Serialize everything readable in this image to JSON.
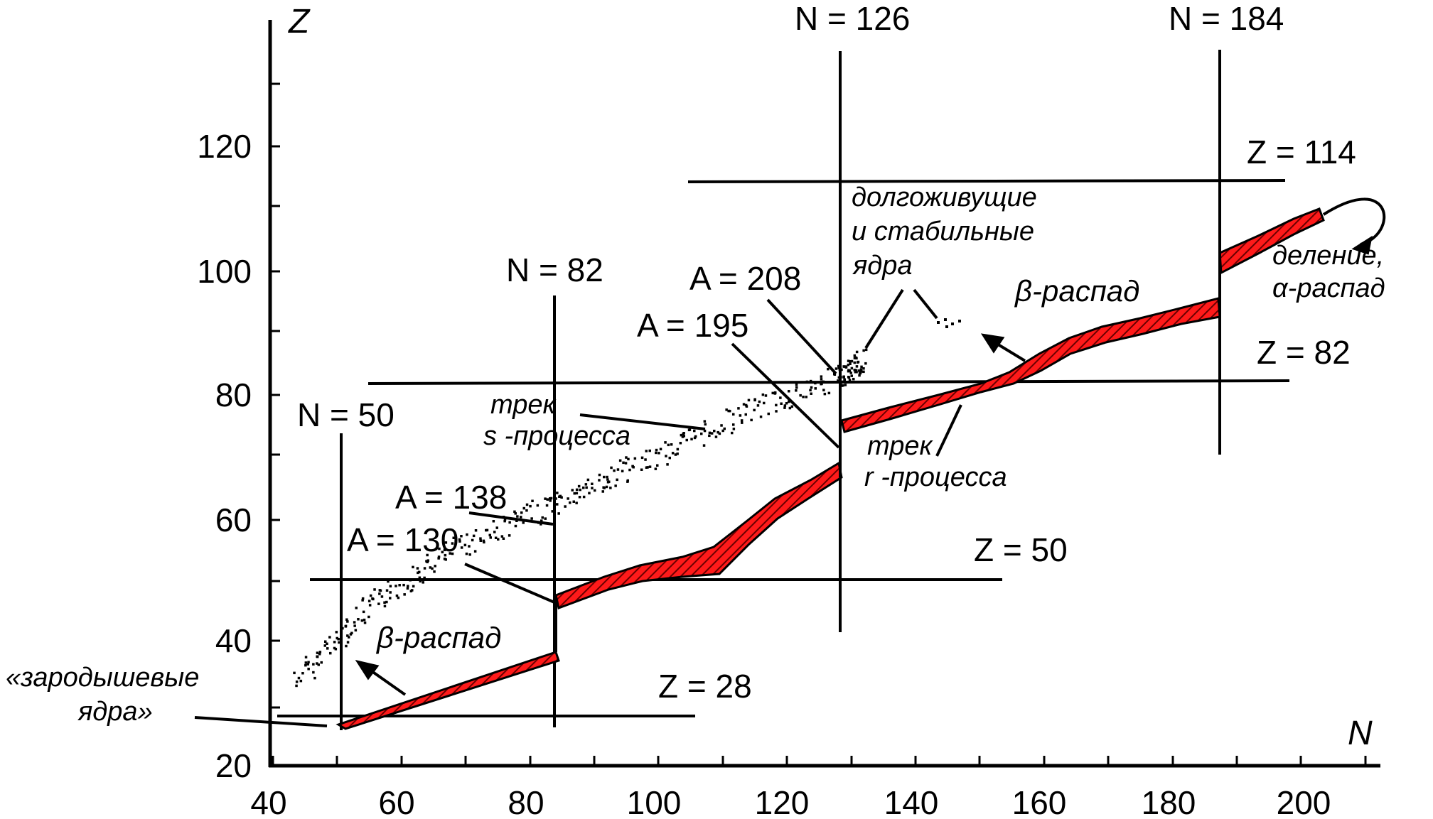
{
  "diagram": {
    "axis_z_label": "Z",
    "axis_n_label": "N",
    "x_ticks": [
      "40",
      "60",
      "80",
      "100",
      "120",
      "140",
      "160",
      "180",
      "200"
    ],
    "y_ticks": [
      "20",
      "40",
      "60",
      "80",
      "100",
      "120"
    ],
    "magic_lines": {
      "n50": "N = 50",
      "n82": "N = 82",
      "n126": "N = 126",
      "n184": "N = 184",
      "z28": "Z = 28",
      "z50": "Z = 50",
      "z82": "Z = 82",
      "z114": "Z = 114"
    },
    "annotations": {
      "seed_nuclei_1": "«зародышевые",
      "seed_nuclei_2": "ядра»",
      "beta_decay_low": "β-распад",
      "beta_decay_high": "β-распад",
      "a130": "A = 130",
      "a138": "A = 138",
      "a195": "A = 195",
      "a208": "A = 208",
      "s_track_1": "трек",
      "s_track_2": "s -процесса",
      "r_track_1": "трек",
      "r_track_2": "r -процесса",
      "longlived_1": "долгоживущие",
      "longlived_2": "и стабильные",
      "longlived_3": "ядра",
      "fission_1": "деление,",
      "fission_2": "α-распад"
    },
    "colors": {
      "r_track": "#ff1a1a",
      "r_track_hatch": "#7a0000",
      "lines": "#000000"
    }
  }
}
